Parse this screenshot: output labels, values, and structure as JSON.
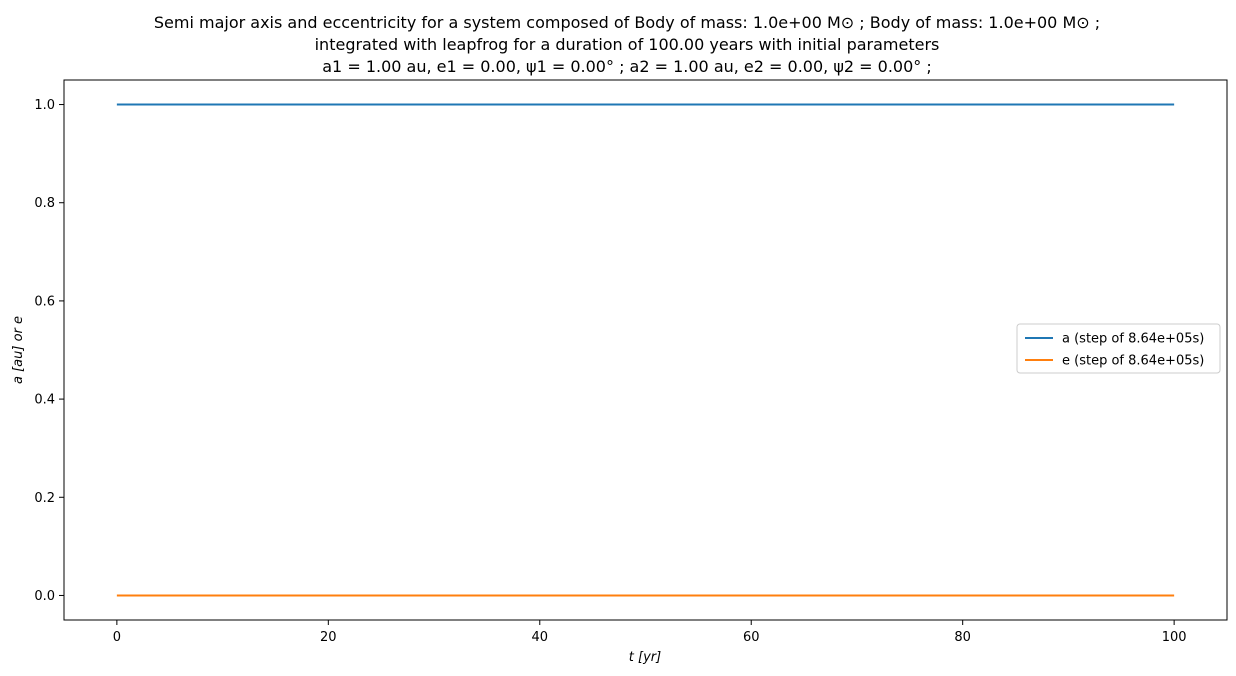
{
  "chart_data": {
    "type": "line",
    "title": [
      "Semi major axis and eccentricity for a system composed of Body of mass: 1.0e+00 M⊙ ; Body of mass: 1.0e+00 M⊙ ;",
      "integrated with leapfrog for a duration of 100.00 years with initial parameters",
      "a1 = 1.00 au, e1 = 0.00, ψ1 = 0.00° ; a2 = 1.00 au, e2 = 0.00, ψ2 = 0.00° ;"
    ],
    "xlabel": "t [yr]",
    "ylabel": "a [au] or e",
    "xlim": [
      -5,
      105
    ],
    "ylim": [
      -0.05,
      1.05
    ],
    "xticks": [
      0,
      20,
      40,
      60,
      80,
      100
    ],
    "xtick_labels": [
      "0",
      "20",
      "40",
      "60",
      "80",
      "100"
    ],
    "yticks": [
      0.0,
      0.2,
      0.4,
      0.6,
      0.8,
      1.0
    ],
    "ytick_labels": [
      "0.0",
      "0.2",
      "0.4",
      "0.6",
      "0.8",
      "1.0"
    ],
    "grid": false,
    "legend_position": "center-right",
    "series": [
      {
        "name": "a (step of 8.64e+05s)",
        "color": "#1f77b4",
        "x": [
          0,
          100
        ],
        "y": [
          1.0,
          1.0
        ]
      },
      {
        "name": "e (step of 8.64e+05s)",
        "color": "#ff7f0e",
        "x": [
          0,
          100
        ],
        "y": [
          0.0,
          0.0
        ]
      }
    ]
  }
}
